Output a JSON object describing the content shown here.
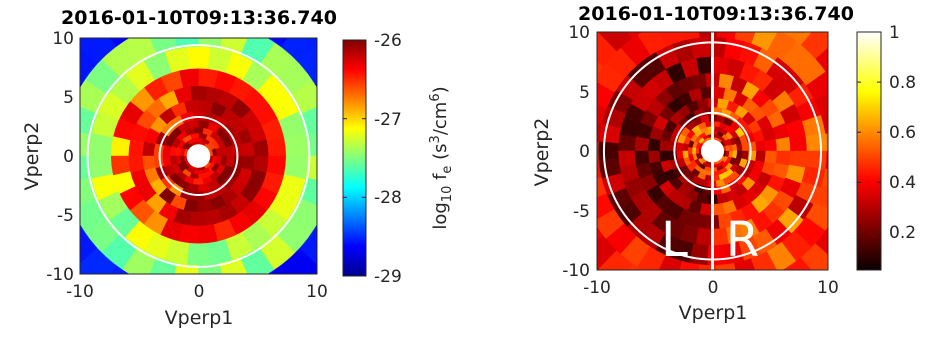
{
  "chart_data": [
    {
      "type": "heatmap",
      "projection": "polar",
      "title": "2016-01-10T09:13:36.740",
      "xlabel": "Vperp1",
      "ylabel": "Vperp2",
      "xlim": [
        -10,
        10
      ],
      "ylim": [
        -10,
        10
      ],
      "xticks": [
        "-10",
        "0",
        "10"
      ],
      "yticks": [
        "10",
        "5",
        "0",
        "-5",
        "-10"
      ],
      "colormap": "jet",
      "colorbar": {
        "ticks": [
          "-26",
          "-27",
          "-28",
          "-29"
        ],
        "tick_values": [
          -26,
          -27,
          -28,
          -29
        ],
        "label_main": "log",
        "label_sub": "10",
        "label_f": " f",
        "label_fsub": "e",
        "label_open": " (s",
        "label_exp1": "3",
        "label_mid": "/cm",
        "label_exp2": "6",
        "label_close": ")",
        "range": [
          -29,
          -26
        ]
      },
      "circle_radii": [
        3.3,
        9.4
      ],
      "background_level": -27.4,
      "dark_ring": {
        "inner_radius": 3.0,
        "outer_radius": 7.0,
        "level": -26.0
      },
      "bins": {
        "radial": 12,
        "angular": 24
      }
    },
    {
      "type": "heatmap",
      "projection": "polar",
      "title": "2016-01-10T09:13:36.740",
      "xlabel": "Vperp1",
      "ylabel": "Vperp2",
      "xlim": [
        -10,
        10
      ],
      "ylim": [
        -10,
        10
      ],
      "xticks": [
        "-10",
        "0",
        "10"
      ],
      "yticks": [
        "10",
        "5",
        "0",
        "-5",
        "-10"
      ],
      "colormap": "hot",
      "colorbar": {
        "ticks": [
          "1",
          "0.8",
          "0.6",
          "0.4",
          "0.2"
        ],
        "tick_values": [
          1,
          0.8,
          0.6,
          0.4,
          0.2
        ],
        "range": [
          0.05,
          1.0
        ]
      },
      "circle_radii": [
        3.3,
        9.4
      ],
      "divider_x": 0,
      "overlay_labels": [
        "L",
        "R"
      ],
      "background_level": 0.35,
      "bins": {
        "radial": 14,
        "angular": 30
      }
    }
  ],
  "colors": {
    "plot_background": "#ffffff",
    "circle": "#ffffff",
    "axis": "#262626"
  }
}
